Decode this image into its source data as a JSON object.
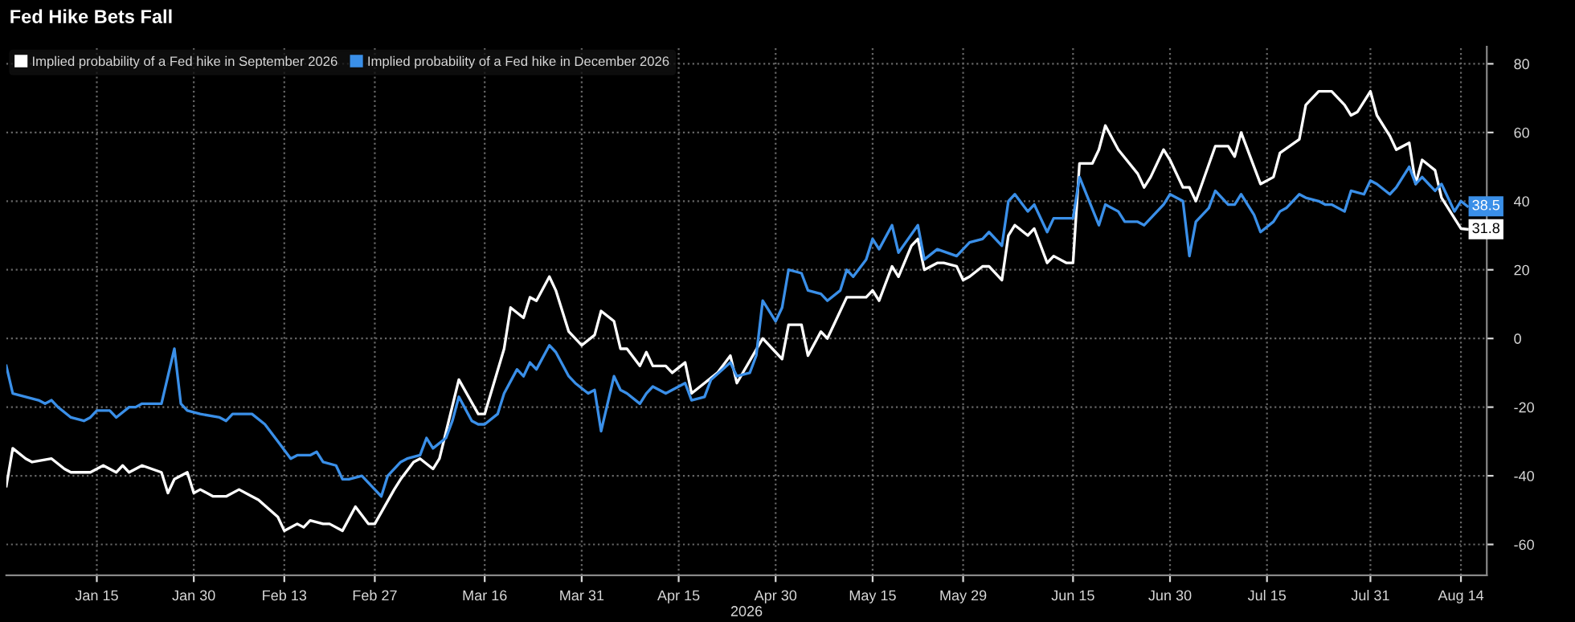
{
  "chart_data": {
    "type": "line",
    "title": "Fed Hike Bets Fall",
    "xlabel": "2026",
    "xlim": [
      "2026-01-01",
      "2026-08-18"
    ],
    "ylim": [
      -69,
      85
    ],
    "xticks": [
      {
        "value": "2026-01-15",
        "label": "Jan 15"
      },
      {
        "value": "2026-01-30",
        "label": "Jan 30"
      },
      {
        "value": "2026-02-13",
        "label": "Feb 13"
      },
      {
        "value": "2026-02-27",
        "label": "Feb 27"
      },
      {
        "value": "2026-03-16",
        "label": "Mar 16"
      },
      {
        "value": "2026-03-31",
        "label": "Mar 31"
      },
      {
        "value": "2026-04-15",
        "label": "Apr 15"
      },
      {
        "value": "2026-04-30",
        "label": "Apr 30"
      },
      {
        "value": "2026-05-15",
        "label": "May 15"
      },
      {
        "value": "2026-05-29",
        "label": "May 29"
      },
      {
        "value": "2026-06-15",
        "label": "Jun 15"
      },
      {
        "value": "2026-06-30",
        "label": "Jun 30"
      },
      {
        "value": "2026-07-15",
        "label": "Jul 15"
      },
      {
        "value": "2026-07-31",
        "label": "Jul 31"
      },
      {
        "value": "2026-08-14",
        "label": "Aug 14"
      }
    ],
    "yticks": [
      -60,
      -40,
      -20,
      0,
      20,
      40,
      60,
      80
    ],
    "grid": true,
    "legend": "top left",
    "line_style": "solid",
    "series": [
      {
        "name": "Implied probability of a Fed hike in September 2026",
        "color": "#ffffff",
        "x": [
          "2026-01-01",
          "2026-01-02",
          "2026-01-04",
          "2026-01-05",
          "2026-01-08",
          "2026-01-10",
          "2026-01-11",
          "2026-01-14",
          "2026-01-16",
          "2026-01-18",
          "2026-01-19",
          "2026-01-20",
          "2026-01-22",
          "2026-01-25",
          "2026-01-26",
          "2026-01-27",
          "2026-01-29",
          "2026-01-30",
          "2026-01-31",
          "2026-02-02",
          "2026-02-04",
          "2026-02-06",
          "2026-02-08",
          "2026-02-09",
          "2026-02-12",
          "2026-02-13",
          "2026-02-15",
          "2026-02-16",
          "2026-02-17",
          "2026-02-19",
          "2026-02-20",
          "2026-02-22",
          "2026-02-24",
          "2026-02-26",
          "2026-02-27",
          "2026-03-02",
          "2026-03-03",
          "2026-03-05",
          "2026-03-06",
          "2026-03-08",
          "2026-03-09",
          "2026-03-12",
          "2026-03-15",
          "2026-03-16",
          "2026-03-19",
          "2026-03-20",
          "2026-03-22",
          "2026-03-23",
          "2026-03-24",
          "2026-03-26",
          "2026-03-27",
          "2026-03-29",
          "2026-03-31",
          "2026-04-02",
          "2026-04-03",
          "2026-04-05",
          "2026-04-06",
          "2026-04-07",
          "2026-04-09",
          "2026-04-10",
          "2026-04-11",
          "2026-04-13",
          "2026-04-14",
          "2026-04-16",
          "2026-04-17",
          "2026-04-21",
          "2026-04-23",
          "2026-04-24",
          "2026-04-28",
          "2026-04-30",
          "2026-05-01",
          "2026-05-02",
          "2026-05-04",
          "2026-05-05",
          "2026-05-07",
          "2026-05-08",
          "2026-05-10",
          "2026-05-11",
          "2026-05-14",
          "2026-05-15",
          "2026-05-16",
          "2026-05-18",
          "2026-05-19",
          "2026-05-21",
          "2026-05-22",
          "2026-05-23",
          "2026-05-25",
          "2026-05-26",
          "2026-05-28",
          "2026-05-29",
          "2026-05-30",
          "2026-06-01",
          "2026-06-02",
          "2026-06-04",
          "2026-06-05",
          "2026-06-06",
          "2026-06-08",
          "2026-06-09",
          "2026-06-11",
          "2026-06-12",
          "2026-06-14",
          "2026-06-15",
          "2026-06-16",
          "2026-06-18",
          "2026-06-19",
          "2026-06-20",
          "2026-06-22",
          "2026-06-25",
          "2026-06-26",
          "2026-06-27",
          "2026-06-29",
          "2026-06-30",
          "2026-07-02",
          "2026-07-03",
          "2026-07-04",
          "2026-07-07",
          "2026-07-09",
          "2026-07-10",
          "2026-07-11",
          "2026-07-13",
          "2026-07-14",
          "2026-07-16",
          "2026-07-17",
          "2026-07-20",
          "2026-07-21",
          "2026-07-23",
          "2026-07-25",
          "2026-07-27",
          "2026-07-28",
          "2026-07-29",
          "2026-07-31",
          "2026-08-01",
          "2026-08-03",
          "2026-08-04",
          "2026-08-06",
          "2026-08-07",
          "2026-08-08",
          "2026-08-10",
          "2026-08-11",
          "2026-08-13",
          "2026-08-14",
          "2026-08-15"
        ],
        "values": [
          -43,
          -32,
          -35,
          -36,
          -35,
          -38,
          -39,
          -39,
          -37,
          -39,
          -37,
          -39,
          -37,
          -39,
          -45,
          -41,
          -39,
          -45,
          -44,
          -46,
          -46,
          -44,
          -46,
          -47,
          -52,
          -56,
          -54,
          -55,
          -53,
          -54,
          -54,
          -56,
          -49,
          -54,
          -54,
          -44,
          -41,
          -36,
          -35,
          -38,
          -35,
          -12,
          -22,
          -22,
          -3,
          9,
          6,
          12,
          11,
          18,
          14,
          2,
          -2,
          1,
          8,
          5,
          -3,
          -3,
          -8,
          -4,
          -8,
          -8,
          -10,
          -7,
          -16,
          -10,
          -5,
          -13,
          0,
          -4,
          -6,
          4,
          4,
          -5,
          2,
          0,
          8,
          12,
          12,
          14,
          11,
          21,
          18,
          27,
          29,
          20,
          22,
          22,
          21,
          17,
          18,
          21,
          21,
          17,
          30,
          33,
          30,
          32,
          22,
          24,
          22,
          22,
          51,
          51,
          55,
          62,
          55,
          48,
          44,
          47,
          55,
          52,
          44,
          44,
          40,
          56,
          56,
          53,
          60,
          50,
          45,
          47,
          54,
          58,
          68,
          72,
          72,
          68,
          65,
          66,
          72,
          65,
          59,
          55,
          57,
          45,
          52,
          49,
          41,
          35,
          32,
          31.8
        ]
      },
      {
        "name": "Implied probability of a Fed hike in December 2026",
        "color": "#3a8fe8",
        "x": [
          "2026-01-01",
          "2026-01-02",
          "2026-01-04",
          "2026-01-06",
          "2026-01-07",
          "2026-01-08",
          "2026-01-09",
          "2026-01-11",
          "2026-01-13",
          "2026-01-14",
          "2026-01-15",
          "2026-01-17",
          "2026-01-18",
          "2026-01-20",
          "2026-01-21",
          "2026-01-22",
          "2026-01-25",
          "2026-01-27",
          "2026-01-28",
          "2026-01-29",
          "2026-01-31",
          "2026-02-03",
          "2026-02-04",
          "2026-02-05",
          "2026-02-08",
          "2026-02-10",
          "2026-02-12",
          "2026-02-14",
          "2026-02-15",
          "2026-02-17",
          "2026-02-18",
          "2026-02-19",
          "2026-02-21",
          "2026-02-22",
          "2026-02-23",
          "2026-02-25",
          "2026-02-27",
          "2026-02-28",
          "2026-03-01",
          "2026-03-03",
          "2026-03-04",
          "2026-03-06",
          "2026-03-07",
          "2026-03-08",
          "2026-03-10",
          "2026-03-11",
          "2026-03-12",
          "2026-03-14",
          "2026-03-15",
          "2026-03-16",
          "2026-03-18",
          "2026-03-19",
          "2026-03-21",
          "2026-03-22",
          "2026-03-23",
          "2026-03-24",
          "2026-03-26",
          "2026-03-27",
          "2026-03-29",
          "2026-03-30",
          "2026-04-01",
          "2026-04-02",
          "2026-04-03",
          "2026-04-05",
          "2026-04-06",
          "2026-04-07",
          "2026-04-09",
          "2026-04-10",
          "2026-04-11",
          "2026-04-13",
          "2026-04-14",
          "2026-04-16",
          "2026-04-17",
          "2026-04-19",
          "2026-04-20",
          "2026-04-23",
          "2026-04-24",
          "2026-04-26",
          "2026-04-27",
          "2026-04-28",
          "2026-04-30",
          "2026-05-01",
          "2026-05-02",
          "2026-05-04",
          "2026-05-05",
          "2026-05-07",
          "2026-05-08",
          "2026-05-10",
          "2026-05-11",
          "2026-05-12",
          "2026-05-14",
          "2026-05-15",
          "2026-05-16",
          "2026-05-18",
          "2026-05-19",
          "2026-05-22",
          "2026-05-23",
          "2026-05-25",
          "2026-05-28",
          "2026-05-30",
          "2026-06-01",
          "2026-06-02",
          "2026-06-04",
          "2026-06-05",
          "2026-06-06",
          "2026-06-08",
          "2026-06-09",
          "2026-06-11",
          "2026-06-12",
          "2026-06-15",
          "2026-06-16",
          "2026-06-19",
          "2026-06-20",
          "2026-06-22",
          "2026-06-23",
          "2026-06-25",
          "2026-06-26",
          "2026-06-27",
          "2026-06-29",
          "2026-06-30",
          "2026-07-02",
          "2026-07-03",
          "2026-07-04",
          "2026-07-06",
          "2026-07-07",
          "2026-07-09",
          "2026-07-10",
          "2026-07-11",
          "2026-07-13",
          "2026-07-14",
          "2026-07-16",
          "2026-07-17",
          "2026-07-18",
          "2026-07-20",
          "2026-07-21",
          "2026-07-23",
          "2026-07-24",
          "2026-07-25",
          "2026-07-27",
          "2026-07-28",
          "2026-07-30",
          "2026-07-31",
          "2026-08-01",
          "2026-08-03",
          "2026-08-04",
          "2026-08-06",
          "2026-08-07",
          "2026-08-08",
          "2026-08-10",
          "2026-08-11",
          "2026-08-13",
          "2026-08-14",
          "2026-08-15"
        ],
        "values": [
          -8,
          -16,
          -17,
          -18,
          -19,
          -18,
          -20,
          -23,
          -24,
          -23,
          -21,
          -21,
          -23,
          -20,
          -20,
          -19,
          -19,
          -3,
          -19,
          -21,
          -22,
          -23,
          -24,
          -22,
          -22,
          -25,
          -30,
          -35,
          -34,
          -34,
          -33,
          -36,
          -37,
          -41,
          -41,
          -40,
          -44,
          -46,
          -40,
          -36,
          -35,
          -34,
          -29,
          -32,
          -29,
          -24,
          -17,
          -24,
          -25,
          -25,
          -22,
          -16,
          -9,
          -11,
          -7,
          -9,
          -2,
          -4,
          -11,
          -13,
          -16,
          -15,
          -27,
          -11,
          -15,
          -16,
          -19,
          -16,
          -14,
          -16,
          -15,
          -13,
          -18,
          -17,
          -12,
          -7,
          -11,
          -10,
          -5,
          11,
          5,
          9,
          20,
          19,
          14,
          13,
          11,
          14,
          20,
          18,
          23,
          29,
          26,
          33,
          25,
          33,
          23,
          26,
          24,
          28,
          29,
          31,
          27,
          40,
          42,
          37,
          39,
          31,
          35,
          35,
          47,
          33,
          39,
          37,
          34,
          34,
          33,
          35,
          39,
          42,
          40,
          24,
          34,
          38,
          43,
          39,
          39,
          42,
          36,
          31,
          34,
          37,
          38,
          42,
          41,
          40,
          39,
          39,
          37,
          43,
          42,
          46,
          45,
          42,
          44,
          50,
          45,
          47,
          43,
          45,
          37,
          40,
          38.5
        ]
      }
    ],
    "annotations": [
      {
        "text": "38.5",
        "x": "2026-08-15",
        "y": 38.5
      },
      {
        "text": "31.8",
        "x": "2026-08-15",
        "y": 31.8
      }
    ]
  }
}
